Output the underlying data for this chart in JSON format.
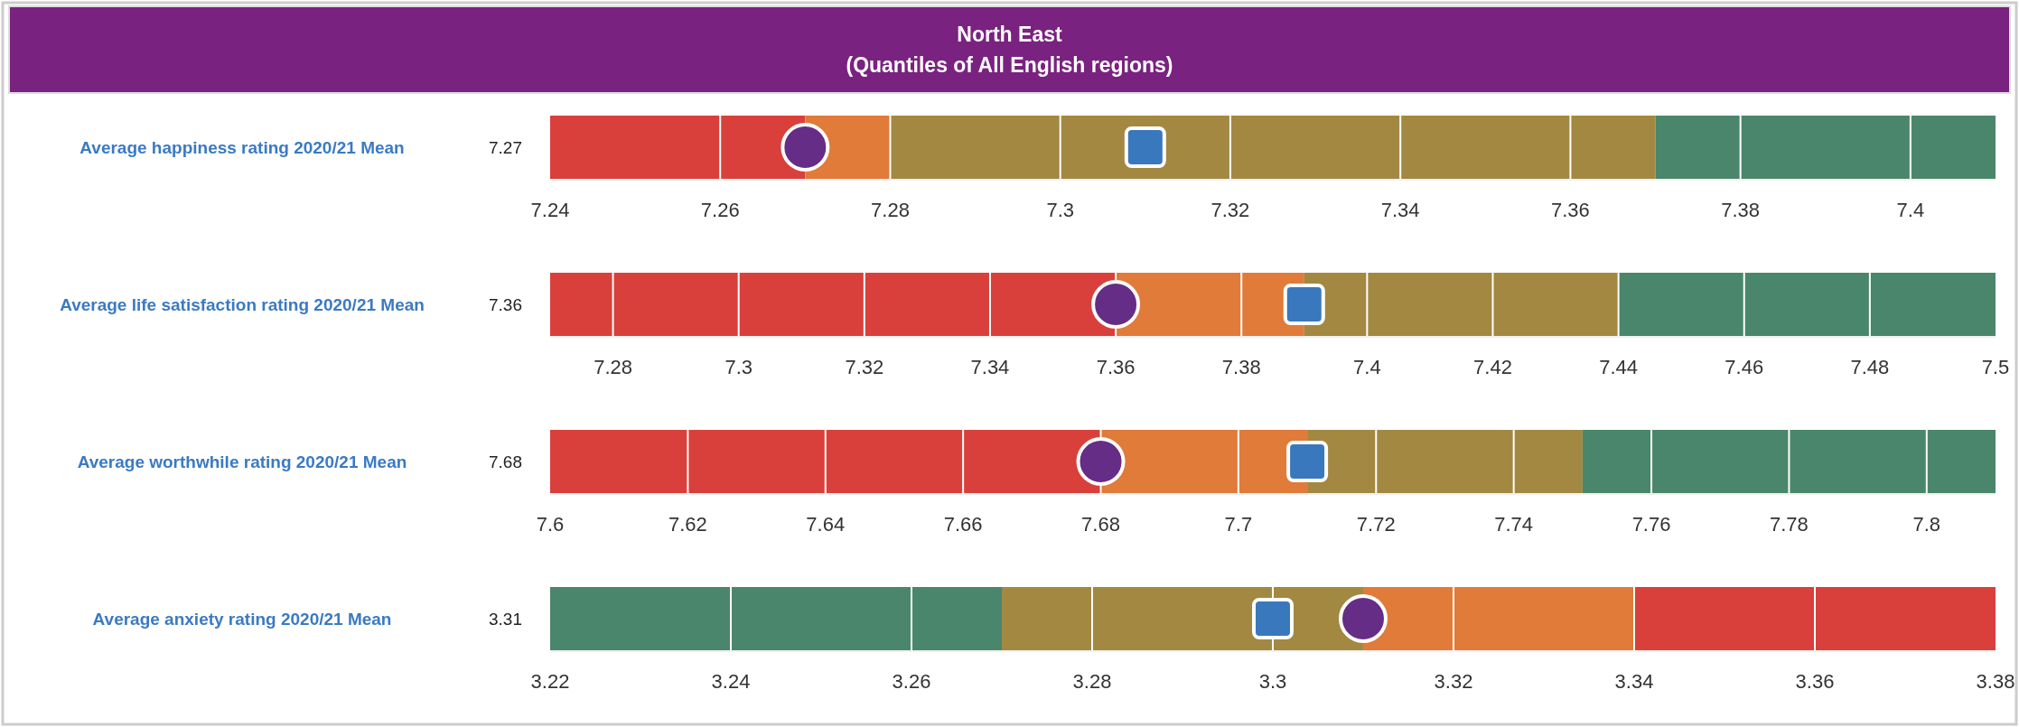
{
  "chart_data": [
    {
      "type": "scatter",
      "title": "North East",
      "subtitle": "(Quantiles of All English regions)",
      "orientation": "horizontal",
      "categories": [
        "Average happiness rating 2020/21 Mean"
      ],
      "xlim": [
        7.24,
        7.41
      ],
      "xticks": [
        7.24,
        7.26,
        7.28,
        7.3,
        7.32,
        7.34,
        7.36,
        7.38,
        7.4
      ],
      "grid": "x",
      "bands": [
        {
          "axis": "x",
          "from": 7.24,
          "to": 7.27,
          "color": "#d9403b"
        },
        {
          "axis": "x",
          "from": 7.27,
          "to": 7.28,
          "color": "#e07b39"
        },
        {
          "axis": "x",
          "from": 7.28,
          "to": 7.37,
          "color": "#a38842"
        },
        {
          "axis": "x",
          "from": 7.37,
          "to": 7.41,
          "color": "#4a866b"
        }
      ],
      "annotations": [
        "7.27"
      ],
      "series": [
        {
          "color": "#652d86",
          "marker": "circle",
          "values": [
            7.27
          ]
        },
        {
          "color": "#3a78bd",
          "marker": "square",
          "values": [
            7.31
          ]
        }
      ]
    },
    {
      "type": "scatter",
      "orientation": "horizontal",
      "categories": [
        "Average life satisfaction rating 2020/21 Mean"
      ],
      "xlim": [
        7.27,
        7.5
      ],
      "xticks": [
        7.28,
        7.3,
        7.32,
        7.34,
        7.36,
        7.38,
        7.4,
        7.42,
        7.44,
        7.46,
        7.48,
        7.5
      ],
      "grid": "x",
      "bands": [
        {
          "axis": "x",
          "from": 7.27,
          "to": 7.36,
          "color": "#d9403b"
        },
        {
          "axis": "x",
          "from": 7.36,
          "to": 7.39,
          "color": "#e07b39"
        },
        {
          "axis": "x",
          "from": 7.39,
          "to": 7.44,
          "color": "#a38842"
        },
        {
          "axis": "x",
          "from": 7.44,
          "to": 7.5,
          "color": "#4a866b"
        }
      ],
      "annotations": [
        "7.36"
      ],
      "series": [
        {
          "color": "#652d86",
          "marker": "circle",
          "values": [
            7.36
          ]
        },
        {
          "color": "#3a78bd",
          "marker": "square",
          "values": [
            7.39
          ]
        }
      ]
    },
    {
      "type": "scatter",
      "orientation": "horizontal",
      "categories": [
        "Average worthwhile rating 2020/21 Mean"
      ],
      "xlim": [
        7.6,
        7.81
      ],
      "xticks": [
        7.6,
        7.62,
        7.64,
        7.66,
        7.68,
        7.7,
        7.72,
        7.74,
        7.76,
        7.78,
        7.8
      ],
      "grid": "x",
      "bands": [
        {
          "axis": "x",
          "from": 7.6,
          "to": 7.68,
          "color": "#d9403b"
        },
        {
          "axis": "x",
          "from": 7.68,
          "to": 7.71,
          "color": "#e07b39"
        },
        {
          "axis": "x",
          "from": 7.71,
          "to": 7.75,
          "color": "#a38842"
        },
        {
          "axis": "x",
          "from": 7.75,
          "to": 7.81,
          "color": "#4a866b"
        }
      ],
      "annotations": [
        "7.68"
      ],
      "series": [
        {
          "color": "#652d86",
          "marker": "circle",
          "values": [
            7.68
          ]
        },
        {
          "color": "#3a78bd",
          "marker": "square",
          "values": [
            7.71
          ]
        }
      ]
    },
    {
      "type": "scatter",
      "orientation": "horizontal",
      "categories": [
        "Average anxiety rating 2020/21 Mean"
      ],
      "xlim": [
        3.22,
        3.38
      ],
      "xticks": [
        3.22,
        3.24,
        3.26,
        3.28,
        3.3,
        3.32,
        3.34,
        3.36,
        3.38
      ],
      "grid": "x",
      "bands": [
        {
          "axis": "x",
          "from": 3.22,
          "to": 3.27,
          "color": "#4a866b"
        },
        {
          "axis": "x",
          "from": 3.27,
          "to": 3.31,
          "color": "#a38842"
        },
        {
          "axis": "x",
          "from": 3.31,
          "to": 3.34,
          "color": "#e07b39"
        },
        {
          "axis": "x",
          "from": 3.34,
          "to": 3.38,
          "color": "#d9403b"
        }
      ],
      "annotations": [
        "3.31"
      ],
      "series": [
        {
          "color": "#3a78bd",
          "marker": "square",
          "values": [
            3.3
          ]
        },
        {
          "color": "#652d86",
          "marker": "circle",
          "values": [
            3.31
          ]
        }
      ]
    }
  ]
}
